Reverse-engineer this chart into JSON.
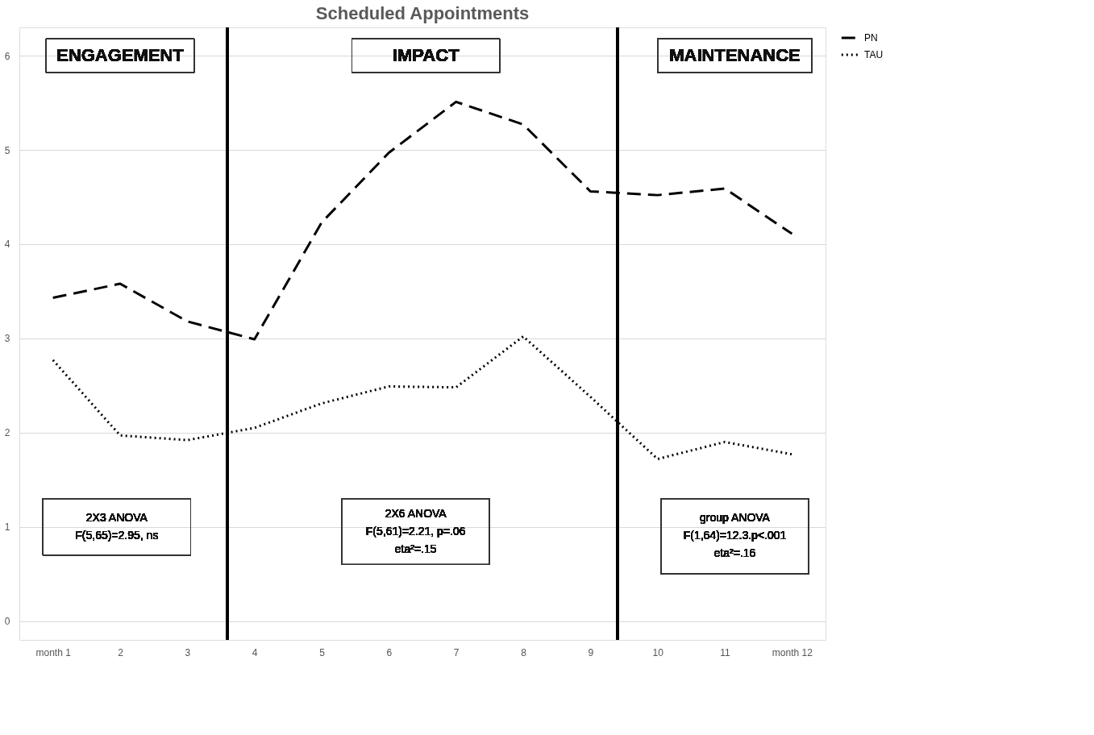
{
  "chart_data": {
    "type": "line",
    "title": "Scheduled Appointments",
    "x": [
      1,
      2,
      3,
      4,
      5,
      6,
      7,
      8,
      9,
      10,
      11,
      12
    ],
    "xlim": [
      0.5,
      12.5
    ],
    "xticks": [
      {
        "value": 1,
        "label": "month 1"
      },
      2,
      3,
      4,
      5,
      6,
      7,
      8,
      9,
      10,
      11,
      {
        "value": 12,
        "label": "month 12"
      }
    ],
    "ylim": [
      -0.2,
      6.3
    ],
    "yticks": [
      0,
      1,
      2,
      3,
      4,
      5,
      6
    ],
    "grid": "y",
    "legend": "top right",
    "series": [
      {
        "name": "PN",
        "color": "#000000",
        "line_style": "dashed",
        "values": [
          3.43,
          3.58,
          3.18,
          2.99,
          4.23,
          4.97,
          5.51,
          5.27,
          4.56,
          4.52,
          4.59,
          4.11
        ]
      },
      {
        "name": "TAU",
        "color": "#000000",
        "line_style": "dotted",
        "values": [
          2.77,
          1.97,
          1.92,
          2.05,
          2.31,
          2.49,
          2.48,
          3.02,
          2.38,
          1.72,
          1.9,
          1.77
        ]
      }
    ],
    "ref_lines": [
      {
        "axis": "x",
        "value": 3.6,
        "color": "#000000",
        "line_style": "solid"
      },
      {
        "axis": "x",
        "value": 9.4,
        "color": "#000000",
        "line_style": "solid"
      }
    ],
    "annotations": [
      "ENGAGEMENT",
      "IMPACT",
      "MAINTENANCE",
      "2X3 ANOVA\nF(5,65)=2.95, ns",
      "2X6 ANOVA\nF(5,61)=2.21, p=.06\neta²=.15",
      "group ANOVA\nF(1,64)=12.3.p<.001\neta²=.16"
    ]
  }
}
